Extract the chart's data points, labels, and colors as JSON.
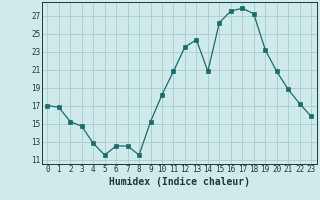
{
  "x": [
    0,
    1,
    2,
    3,
    4,
    5,
    6,
    7,
    8,
    9,
    10,
    11,
    12,
    13,
    14,
    15,
    16,
    17,
    18,
    19,
    20,
    21,
    22,
    23
  ],
  "y": [
    17,
    16.8,
    15.2,
    14.7,
    12.8,
    11.5,
    12.5,
    12.5,
    11.5,
    15.2,
    18.2,
    20.8,
    23.5,
    24.3,
    20.8,
    26.2,
    27.5,
    27.8,
    27.2,
    23.2,
    20.8,
    18.8,
    17.2,
    15.8
  ],
  "line_color": "#1a6b6b",
  "marker": "s",
  "marker_size": 2.2,
  "bg_color": "#ceeaea",
  "grid_color": "#a8cccc",
  "xlabel": "Humidex (Indice chaleur)",
  "xlim": [
    -0.5,
    23.5
  ],
  "ylim": [
    10.5,
    28.5
  ],
  "yticks": [
    11,
    13,
    15,
    17,
    19,
    21,
    23,
    25,
    27
  ],
  "xticks": [
    0,
    1,
    2,
    3,
    4,
    5,
    6,
    7,
    8,
    9,
    10,
    11,
    12,
    13,
    14,
    15,
    16,
    17,
    18,
    19,
    20,
    21,
    22,
    23
  ],
  "tick_label_fontsize": 5.5,
  "xlabel_fontsize": 7.0,
  "label_color": "#1a3a3a"
}
